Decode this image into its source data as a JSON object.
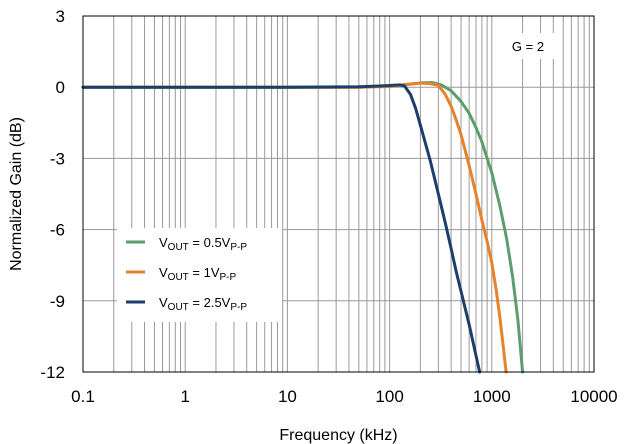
{
  "chart_data": {
    "type": "line",
    "title": "",
    "xlabel": "Frequency (kHz)",
    "ylabel": "Normalized Gain (dB)",
    "x_scale": "log",
    "xlim": [
      0.1,
      10000
    ],
    "ylim": [
      -12,
      3
    ],
    "x_ticks": [
      0.1,
      1,
      10,
      100,
      1000,
      10000
    ],
    "x_tick_labels": [
      "0.1",
      "1",
      "10",
      "100",
      "1000",
      "10000"
    ],
    "y_ticks": [
      3,
      0,
      -3,
      -6,
      -9,
      -12
    ],
    "y_tick_labels": [
      "3",
      "0",
      "-3",
      "-6",
      "-9",
      "-12"
    ],
    "grid": true,
    "annotation": "G = 2",
    "legend_position": "lower-left",
    "series": [
      {
        "name": "V_OUT = 0.5V_P-P",
        "legend": {
          "main": "V",
          "sub1": "OUT",
          "mid": " = 0.5V",
          "sub2": "P-P"
        },
        "color": "#5b9e6e",
        "points": [
          [
            0.1,
            0
          ],
          [
            1,
            0
          ],
          [
            10,
            0
          ],
          [
            50,
            0
          ],
          [
            100,
            0.05
          ],
          [
            150,
            0.12
          ],
          [
            200,
            0.18
          ],
          [
            260,
            0.2
          ],
          [
            320,
            0.1
          ],
          [
            400,
            -0.15
          ],
          [
            500,
            -0.6
          ],
          [
            600,
            -1.1
          ],
          [
            700,
            -1.7
          ],
          [
            800,
            -2.3
          ],
          [
            900,
            -3
          ],
          [
            1000,
            -3.6
          ],
          [
            1200,
            -5
          ],
          [
            1400,
            -6.4
          ],
          [
            1600,
            -8
          ],
          [
            1800,
            -9.8
          ],
          [
            2000,
            -12
          ]
        ]
      },
      {
        "name": "V_OUT = 1V_P-P",
        "legend": {
          "main": "V",
          "sub1": "OUT",
          "mid": " = 1V",
          "sub2": "P-P"
        },
        "color": "#e8822a",
        "points": [
          [
            0.1,
            0
          ],
          [
            1,
            0
          ],
          [
            10,
            0
          ],
          [
            50,
            0
          ],
          [
            100,
            0.03
          ],
          [
            150,
            0.12
          ],
          [
            200,
            0.17
          ],
          [
            250,
            0.15
          ],
          [
            300,
            0.08
          ],
          [
            350,
            -0.3
          ],
          [
            400,
            -0.8
          ],
          [
            450,
            -1.4
          ],
          [
            500,
            -2
          ],
          [
            600,
            -3.3
          ],
          [
            700,
            -4.5
          ],
          [
            800,
            -5.6
          ],
          [
            900,
            -6.5
          ],
          [
            1000,
            -7.4
          ],
          [
            1100,
            -8.5
          ],
          [
            1200,
            -9.7
          ],
          [
            1300,
            -11
          ],
          [
            1380,
            -12
          ]
        ]
      },
      {
        "name": "V_OUT = 2.5V_P-P",
        "legend": {
          "main": "V",
          "sub1": "OUT",
          "mid": " = 2.5V",
          "sub2": "P-P"
        },
        "color": "#1c3e6b",
        "points": [
          [
            0.1,
            0
          ],
          [
            1,
            0
          ],
          [
            10,
            0
          ],
          [
            50,
            0.02
          ],
          [
            100,
            0.07
          ],
          [
            125,
            0.1
          ],
          [
            140,
            0.05
          ],
          [
            160,
            -0.3
          ],
          [
            180,
            -0.9
          ],
          [
            200,
            -1.6
          ],
          [
            250,
            -3.1
          ],
          [
            300,
            -4.5
          ],
          [
            350,
            -5.7
          ],
          [
            400,
            -6.8
          ],
          [
            450,
            -7.8
          ],
          [
            500,
            -8.6
          ],
          [
            600,
            -10
          ],
          [
            700,
            -11.3
          ],
          [
            760,
            -12
          ]
        ]
      }
    ]
  }
}
